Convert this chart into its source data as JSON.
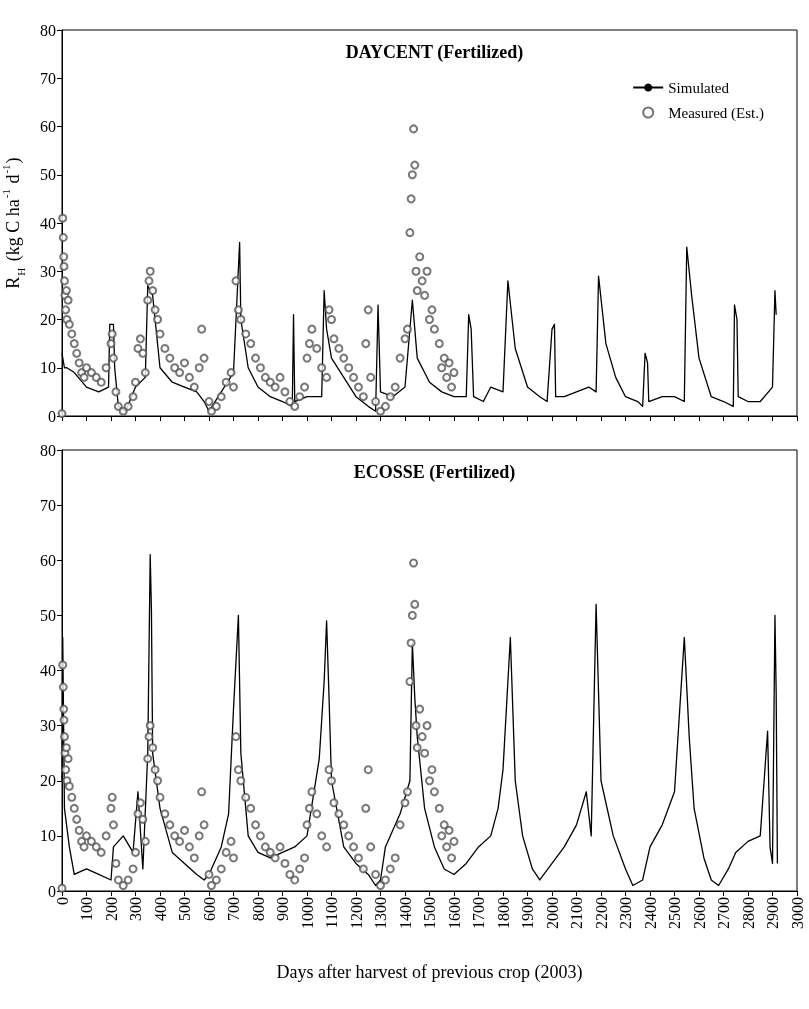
{
  "chart_data": [
    {
      "type": "line",
      "title": "DAYCENT (Fertilized)",
      "ylabel": "R$_{H}$ (kg C ha$^{-1}$ d$^{-1}$)",
      "legend": "top right",
      "tick_labels": "y",
      "xlim": [
        0,
        3000
      ],
      "xticks": [
        0,
        100,
        200,
        300,
        400,
        500,
        600,
        700,
        800,
        900,
        1000,
        1100,
        1200,
        1300,
        1400,
        1500,
        1600,
        1700,
        1800,
        1900,
        2000,
        2100,
        2200,
        2300,
        2400,
        2500,
        2600,
        2700,
        2800,
        2900,
        3000
      ],
      "ylim": [
        0,
        80
      ],
      "yticks": [
        0,
        10,
        20,
        30,
        40,
        50,
        60,
        70,
        80
      ],
      "series": [
        {
          "name": "Simulated",
          "type": "line",
          "marker": "none",
          "color": "#000000",
          "x": [
            0,
            10,
            20,
            50,
            100,
            150,
            190,
            195,
            210,
            215,
            230,
            260,
            300,
            340,
            350,
            370,
            400,
            450,
            500,
            550,
            580,
            600,
            650,
            700,
            725,
            730,
            760,
            800,
            850,
            900,
            940,
            945,
            950,
            1000,
            1060,
            1070,
            1080,
            1100,
            1150,
            1200,
            1250,
            1280,
            1290,
            1300,
            1350,
            1400,
            1430,
            1450,
            1500,
            1550,
            1600,
            1650,
            1660,
            1670,
            1680,
            1720,
            1750,
            1800,
            1820,
            1850,
            1900,
            1950,
            1980,
            2000,
            2010,
            2015,
            2050,
            2100,
            2150,
            2180,
            2190,
            2220,
            2260,
            2300,
            2350,
            2370,
            2380,
            2390,
            2395,
            2450,
            2500,
            2540,
            2550,
            2570,
            2600,
            2650,
            2700,
            2740,
            2745,
            2755,
            2760,
            2800,
            2850,
            2900,
            2910,
            2915
          ],
          "values": [
            13,
            10,
            10,
            9,
            6,
            5,
            6,
            19,
            19,
            10,
            2,
            1,
            6,
            8,
            27,
            25,
            10,
            7,
            6,
            5,
            3,
            1,
            5,
            9,
            36,
            20,
            10,
            6,
            4,
            3,
            2,
            21,
            3,
            4,
            4,
            26,
            18,
            12,
            8,
            4,
            2,
            1,
            23,
            5,
            4,
            6,
            24,
            12,
            7,
            5,
            4,
            4,
            21,
            18,
            4,
            3,
            6,
            5,
            28,
            14,
            6,
            4,
            3,
            18,
            19,
            4,
            4,
            5,
            6,
            5,
            29,
            15,
            8,
            4,
            3,
            2,
            13,
            11,
            3,
            4,
            4,
            3,
            35,
            25,
            12,
            4,
            3,
            2,
            23,
            20,
            4,
            3,
            3,
            6,
            26,
            21
          ]
        },
        {
          "name": "Measured (Est.)",
          "type": "scatter",
          "marker": "circle",
          "color": "#555555",
          "x": [
            0,
            3,
            5,
            7,
            8,
            10,
            12,
            15,
            18,
            20,
            25,
            30,
            40,
            50,
            60,
            70,
            80,
            90,
            100,
            120,
            140,
            160,
            180,
            200,
            205,
            210,
            220,
            230,
            250,
            270,
            290,
            300,
            310,
            320,
            330,
            340,
            350,
            355,
            360,
            370,
            380,
            390,
            400,
            420,
            440,
            460,
            480,
            500,
            520,
            540,
            560,
            570,
            580,
            600,
            610,
            630,
            650,
            670,
            690,
            700,
            710,
            720,
            730,
            750,
            770,
            790,
            810,
            830,
            850,
            870,
            890,
            910,
            930,
            950,
            970,
            990,
            1000,
            1010,
            1020,
            1040,
            1060,
            1080,
            1090,
            1100,
            1110,
            1130,
            1150,
            1170,
            1190,
            1210,
            1230,
            1240,
            1250,
            1260,
            1280,
            1300,
            1320,
            1340,
            1360,
            1380,
            1400,
            1410,
            1420,
            1425,
            1430,
            1435,
            1440,
            1445,
            1450,
            1460,
            1470,
            1480,
            1490,
            1500,
            1510,
            1520,
            1540,
            1550,
            1560,
            1570,
            1580,
            1590,
            1600
          ],
          "values": [
            0.5,
            41,
            37,
            33,
            31,
            28,
            25,
            22,
            26,
            20,
            24,
            19,
            17,
            15,
            13,
            11,
            9,
            8,
            10,
            9,
            8,
            7,
            10,
            15,
            17,
            12,
            5,
            2,
            1,
            2,
            4,
            7,
            14,
            16,
            13,
            9,
            24,
            28,
            30,
            26,
            22,
            20,
            17,
            14,
            12,
            10,
            9,
            11,
            8,
            6,
            10,
            18,
            12,
            3,
            1,
            2,
            4,
            7,
            9,
            6,
            28,
            22,
            20,
            17,
            15,
            12,
            10,
            8,
            7,
            6,
            8,
            5,
            3,
            2,
            4,
            6,
            12,
            15,
            18,
            14,
            10,
            8,
            22,
            20,
            16,
            14,
            12,
            10,
            8,
            6,
            4,
            15,
            22,
            8,
            3,
            1,
            2,
            4,
            6,
            12,
            16,
            18,
            38,
            45,
            50,
            59.5,
            52,
            30,
            26,
            33,
            28,
            25,
            30,
            20,
            22,
            18,
            15,
            10,
            12,
            8,
            11,
            6,
            9
          ]
        }
      ]
    },
    {
      "type": "line",
      "title": "ECOSSE (Fertilized)",
      "xlabel": "Days after harvest of previous crop (2003)",
      "xlim": [
        0,
        3000
      ],
      "xticks": [
        0,
        100,
        200,
        300,
        400,
        500,
        600,
        700,
        800,
        900,
        1000,
        1100,
        1200,
        1300,
        1400,
        1500,
        1600,
        1700,
        1800,
        1900,
        2000,
        2100,
        2200,
        2300,
        2400,
        2500,
        2600,
        2700,
        2800,
        2900,
        3000
      ],
      "ylim": [
        0,
        80
      ],
      "yticks": [
        0,
        10,
        20,
        30,
        40,
        50,
        60,
        70,
        80
      ],
      "series": [
        {
          "type": "line",
          "marker": "none",
          "color": "#000000",
          "x": [
            0,
            3,
            10,
            30,
            50,
            100,
            150,
            200,
            210,
            250,
            290,
            310,
            330,
            350,
            360,
            365,
            370,
            400,
            450,
            500,
            550,
            580,
            600,
            650,
            680,
            700,
            720,
            730,
            760,
            800,
            850,
            900,
            950,
            1000,
            1050,
            1070,
            1080,
            1090,
            1100,
            1150,
            1200,
            1250,
            1280,
            1300,
            1320,
            1380,
            1420,
            1430,
            1440,
            1450,
            1480,
            1520,
            1560,
            1600,
            1650,
            1700,
            1750,
            1780,
            1800,
            1830,
            1850,
            1880,
            1920,
            1950,
            2000,
            2050,
            2100,
            2140,
            2160,
            2180,
            2200,
            2250,
            2300,
            2330,
            2370,
            2400,
            2450,
            2500,
            2540,
            2560,
            2580,
            2620,
            2650,
            2680,
            2720,
            2750,
            2800,
            2850,
            2880,
            2890,
            2900,
            2910,
            2915,
            2920
          ],
          "values": [
            20,
            46,
            15,
            8,
            3,
            4,
            3,
            2,
            8,
            10,
            7,
            18,
            4,
            25,
            61,
            51,
            25,
            15,
            7,
            5,
            3,
            2,
            3,
            8,
            14,
            33,
            50,
            25,
            10,
            7,
            6,
            7,
            8,
            10,
            24,
            38,
            49,
            35,
            20,
            8,
            5,
            3,
            1,
            2,
            8,
            14,
            20,
            45,
            35,
            28,
            15,
            8,
            4,
            3,
            5,
            8,
            10,
            15,
            22,
            46,
            20,
            10,
            4,
            2,
            5,
            8,
            12,
            18,
            10,
            52,
            20,
            10,
            4,
            1,
            2,
            8,
            12,
            18,
            46,
            28,
            15,
            6,
            2,
            1,
            4,
            7,
            9,
            10,
            29,
            8,
            5,
            50,
            36,
            5
          ]
        },
        {
          "type": "scatter",
          "marker": "circle",
          "color": "#555555",
          "x": [
            0,
            3,
            5,
            7,
            8,
            10,
            12,
            15,
            18,
            20,
            25,
            30,
            40,
            50,
            60,
            70,
            80,
            90,
            100,
            120,
            140,
            160,
            180,
            200,
            205,
            210,
            220,
            230,
            250,
            270,
            290,
            300,
            310,
            320,
            330,
            340,
            350,
            355,
            360,
            370,
            380,
            390,
            400,
            420,
            440,
            460,
            480,
            500,
            520,
            540,
            560,
            570,
            580,
            600,
            610,
            630,
            650,
            670,
            690,
            700,
            710,
            720,
            730,
            750,
            770,
            790,
            810,
            830,
            850,
            870,
            890,
            910,
            930,
            950,
            970,
            990,
            1000,
            1010,
            1020,
            1040,
            1060,
            1080,
            1090,
            1100,
            1110,
            1130,
            1150,
            1170,
            1190,
            1210,
            1230,
            1240,
            1250,
            1260,
            1280,
            1300,
            1320,
            1340,
            1360,
            1380,
            1400,
            1410,
            1420,
            1425,
            1430,
            1435,
            1440,
            1445,
            1450,
            1460,
            1470,
            1480,
            1490,
            1500,
            1510,
            1520,
            1540,
            1550,
            1560,
            1570,
            1580,
            1590,
            1600
          ],
          "values": [
            0.5,
            41,
            37,
            33,
            31,
            28,
            25,
            22,
            26,
            20,
            24,
            19,
            17,
            15,
            13,
            11,
            9,
            8,
            10,
            9,
            8,
            7,
            10,
            15,
            17,
            12,
            5,
            2,
            1,
            2,
            4,
            7,
            14,
            16,
            13,
            9,
            24,
            28,
            30,
            26,
            22,
            20,
            17,
            14,
            12,
            10,
            9,
            11,
            8,
            6,
            10,
            18,
            12,
            3,
            1,
            2,
            4,
            7,
            9,
            6,
            28,
            22,
            20,
            17,
            15,
            12,
            10,
            8,
            7,
            6,
            8,
            5,
            3,
            2,
            4,
            6,
            12,
            15,
            18,
            14,
            10,
            8,
            22,
            20,
            16,
            14,
            12,
            10,
            8,
            6,
            4,
            15,
            22,
            8,
            3,
            1,
            2,
            4,
            6,
            12,
            16,
            18,
            38,
            45,
            50,
            59.5,
            52,
            30,
            26,
            33,
            28,
            25,
            30,
            20,
            22,
            18,
            15,
            10,
            12,
            8,
            11,
            6,
            9
          ]
        }
      ]
    }
  ]
}
